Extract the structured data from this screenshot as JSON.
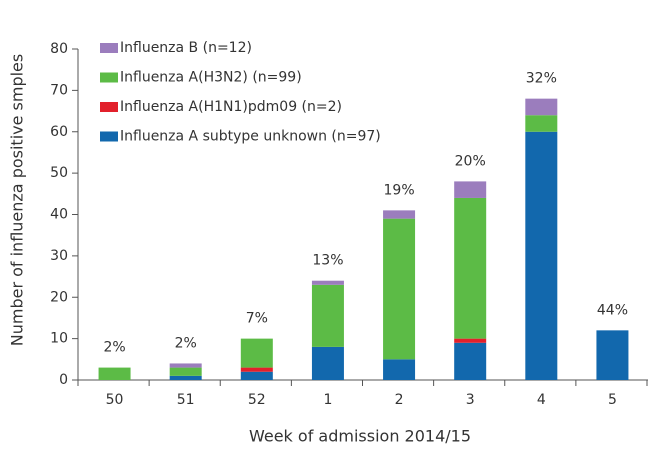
{
  "chart_data": {
    "type": "stacked_bar",
    "y_label": "Number of influenza positive smples",
    "x_label": "Week of admission 2014/15",
    "categories": [
      "50",
      "51",
      "52",
      "1",
      "2",
      "3",
      "4",
      "5"
    ],
    "series": [
      {
        "name": "Influenza A subtype unknown (n=97)",
        "color": "#1268ad",
        "values": [
          0,
          1,
          2,
          8,
          5,
          9,
          60,
          12
        ]
      },
      {
        "name": "Influenza A(H1N1)pdm09 (n=2)",
        "color": "#e2202b",
        "values": [
          0,
          0,
          1,
          0,
          0,
          1,
          0,
          0
        ]
      },
      {
        "name": "Influenza A(H3N2) (n=99)",
        "color": "#5cbb46",
        "values": [
          3,
          2,
          7,
          15,
          34,
          34,
          4,
          0
        ]
      },
      {
        "name": "Influenza B (n=12)",
        "color": "#9b7dbd",
        "values": [
          0,
          1,
          0,
          1,
          2,
          4,
          4,
          0
        ]
      }
    ],
    "annotations": [
      "2%",
      "2%",
      "7%",
      "13%",
      "19%",
      "20%",
      "32%",
      "44%"
    ],
    "ylim": [
      0,
      80
    ],
    "yticks": [
      0,
      10,
      20,
      30,
      40,
      50,
      60,
      70,
      80
    ]
  }
}
